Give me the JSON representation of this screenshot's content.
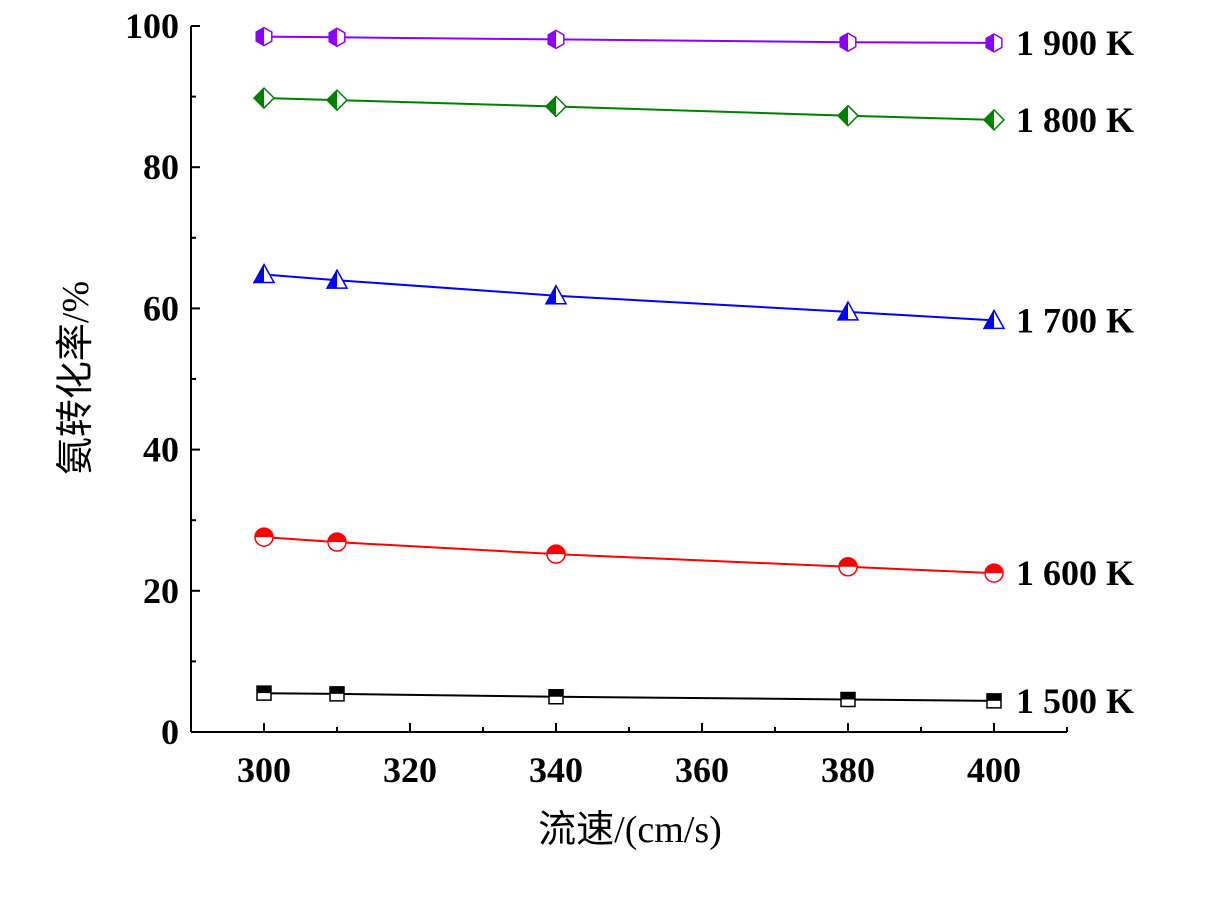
{
  "chart_data": {
    "type": "line",
    "title": "",
    "xlabel": "流速/(cm/s)",
    "ylabel": "氨转化率/%",
    "xlim": [
      290,
      410
    ],
    "ylim": [
      0,
      100
    ],
    "xticks": [
      300,
      320,
      340,
      360,
      380,
      400
    ],
    "yticks": [
      0,
      20,
      40,
      60,
      80,
      100
    ],
    "x": [
      300,
      310,
      340,
      380,
      400
    ],
    "legend": "none (series labels at right end of each line)",
    "grid": false,
    "series": [
      {
        "name": "1 500 K",
        "color": "#000000",
        "marker": "square",
        "values": [
          5.5,
          5.4,
          5.0,
          4.6,
          4.4
        ]
      },
      {
        "name": "1 600 K",
        "color": "#ff0000",
        "marker": "circle",
        "values": [
          27.6,
          26.9,
          25.2,
          23.4,
          22.5
        ]
      },
      {
        "name": "1 700 K",
        "color": "#0000ff",
        "marker": "triangle",
        "values": [
          64.8,
          64.0,
          61.8,
          59.5,
          58.3
        ]
      },
      {
        "name": "1 800 K",
        "color": "#008000",
        "marker": "diamond",
        "values": [
          89.8,
          89.5,
          88.6,
          87.3,
          86.7
        ]
      },
      {
        "name": "1 900 K",
        "color": "#8b00ff",
        "marker": "hexagon",
        "values": [
          98.5,
          98.4,
          98.1,
          97.7,
          97.6
        ]
      }
    ]
  }
}
